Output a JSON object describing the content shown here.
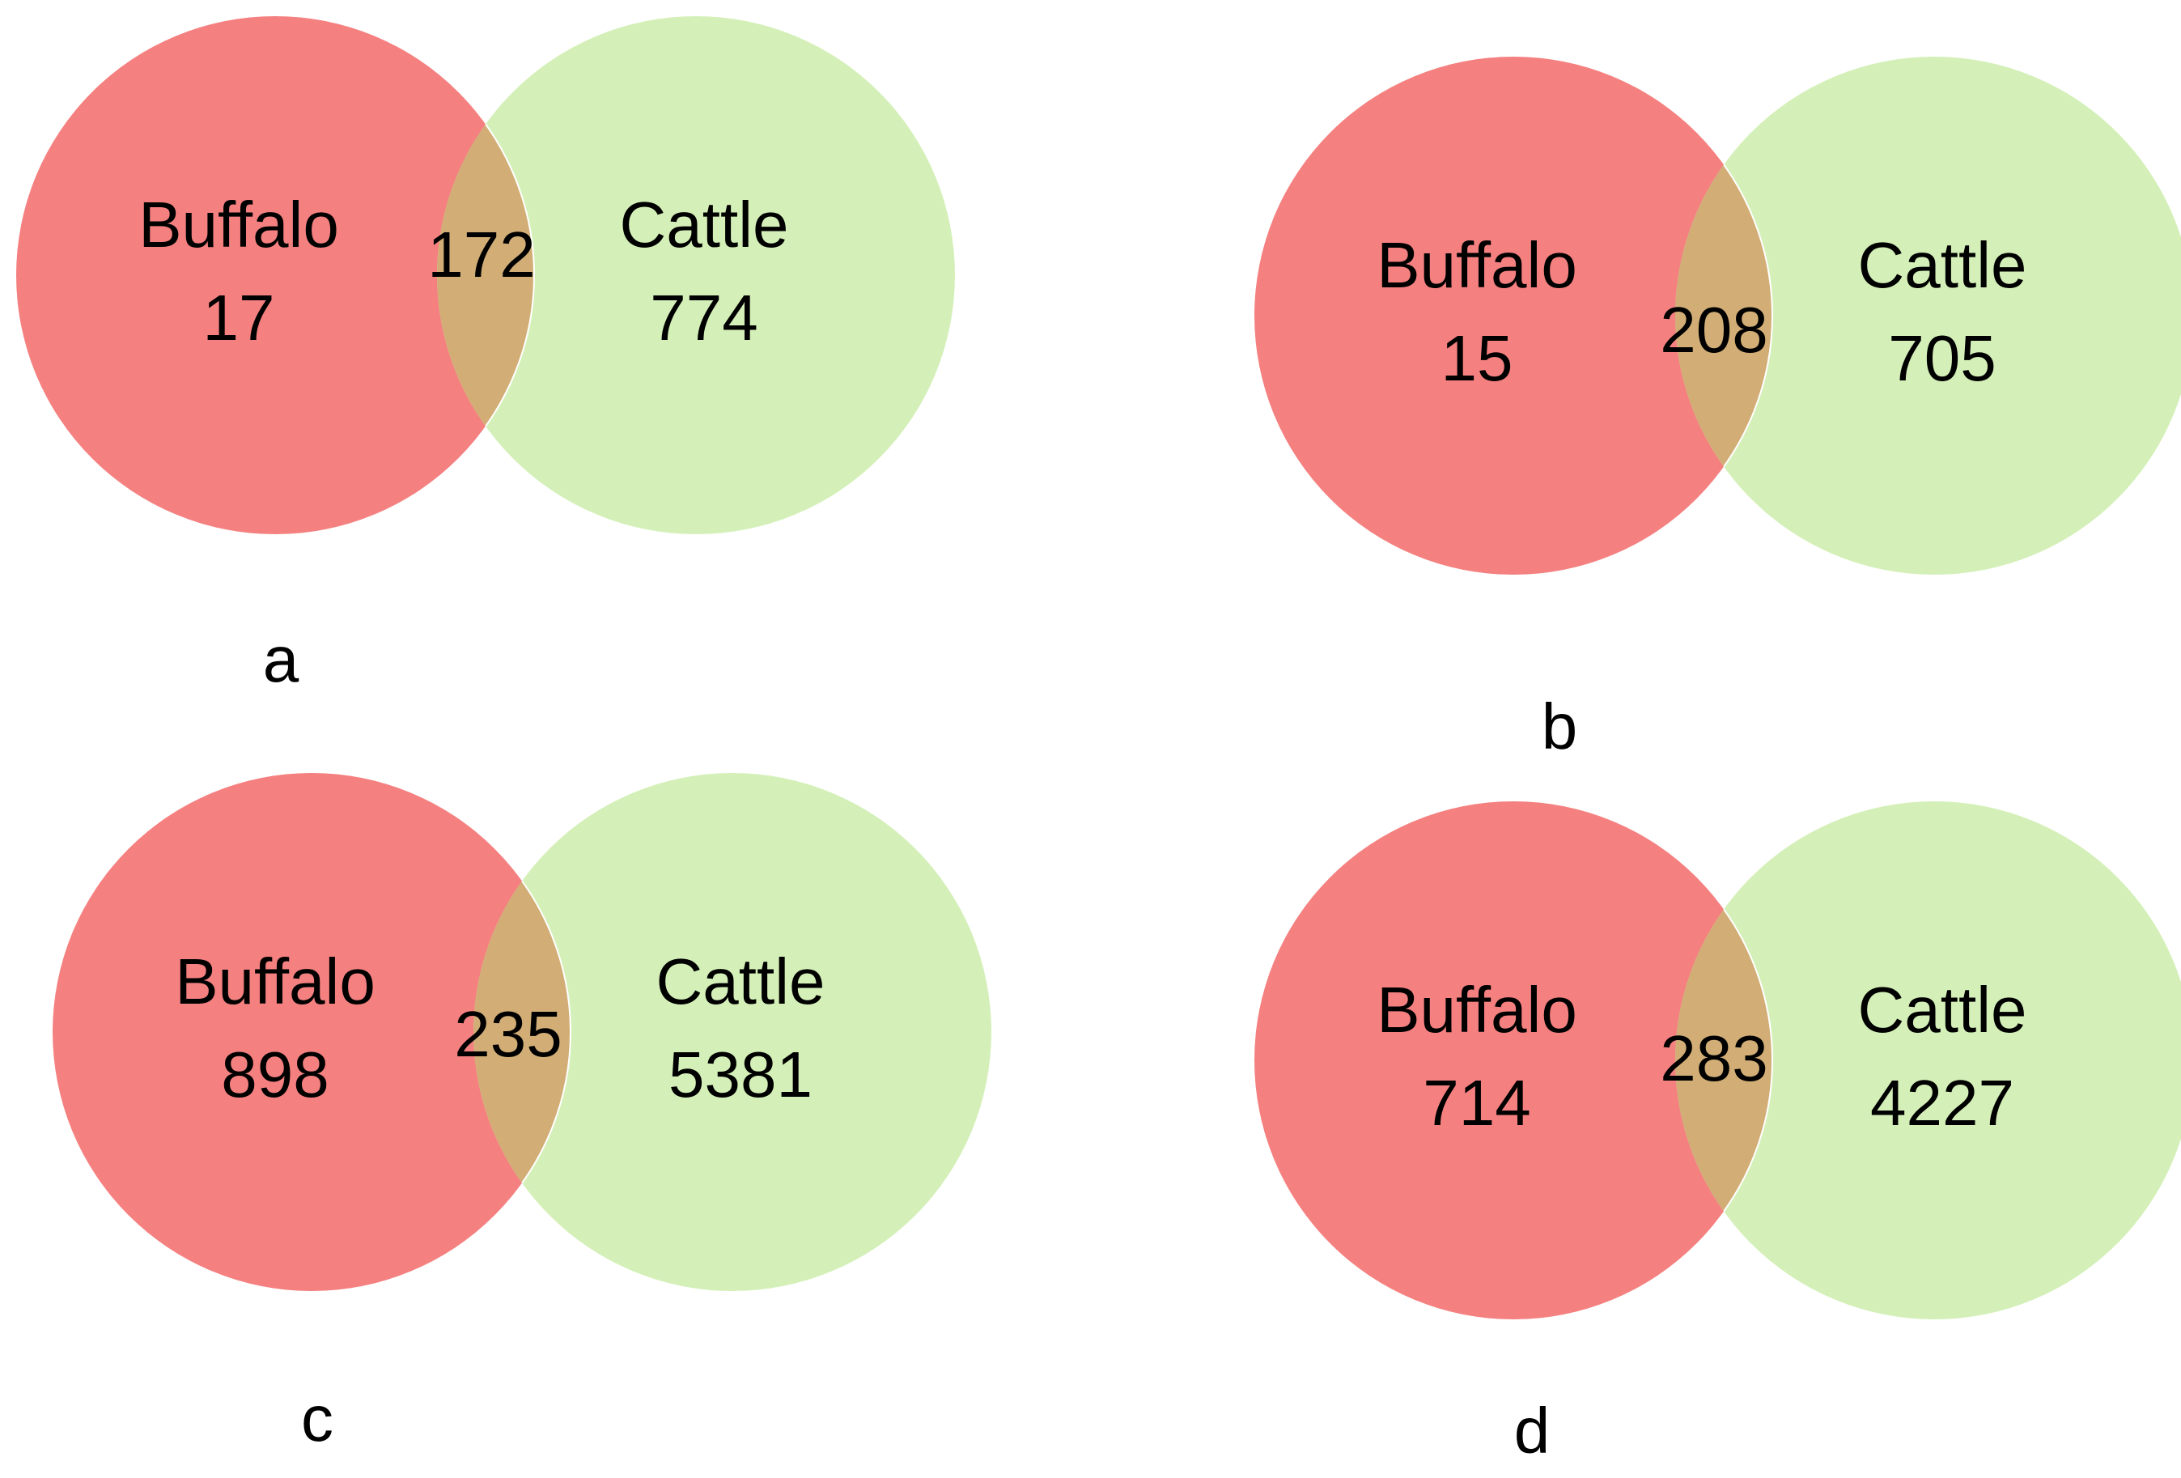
{
  "colors": {
    "buffalo": "#f58080",
    "cattle": "#d4f0b8",
    "overlap": "#d2ae76",
    "outline": "#ffffff",
    "text": "#000000"
  },
  "panels": [
    {
      "letter": "a",
      "buffalo_label": "Buffalo",
      "buffalo_value": "17",
      "overlap_value": "172",
      "cattle_label": "Cattle",
      "cattle_value": "774"
    },
    {
      "letter": "b",
      "buffalo_label": "Buffalo",
      "buffalo_value": "15",
      "overlap_value": "208",
      "cattle_label": "Cattle",
      "cattle_value": "705"
    },
    {
      "letter": "c",
      "buffalo_label": "Buffalo",
      "buffalo_value": "898",
      "overlap_value": "235",
      "cattle_label": "Cattle",
      "cattle_value": "5381"
    },
    {
      "letter": "d",
      "buffalo_label": "Buffalo",
      "buffalo_value": "714",
      "overlap_value": "283",
      "cattle_label": "Cattle",
      "cattle_value": "4227"
    }
  ]
}
